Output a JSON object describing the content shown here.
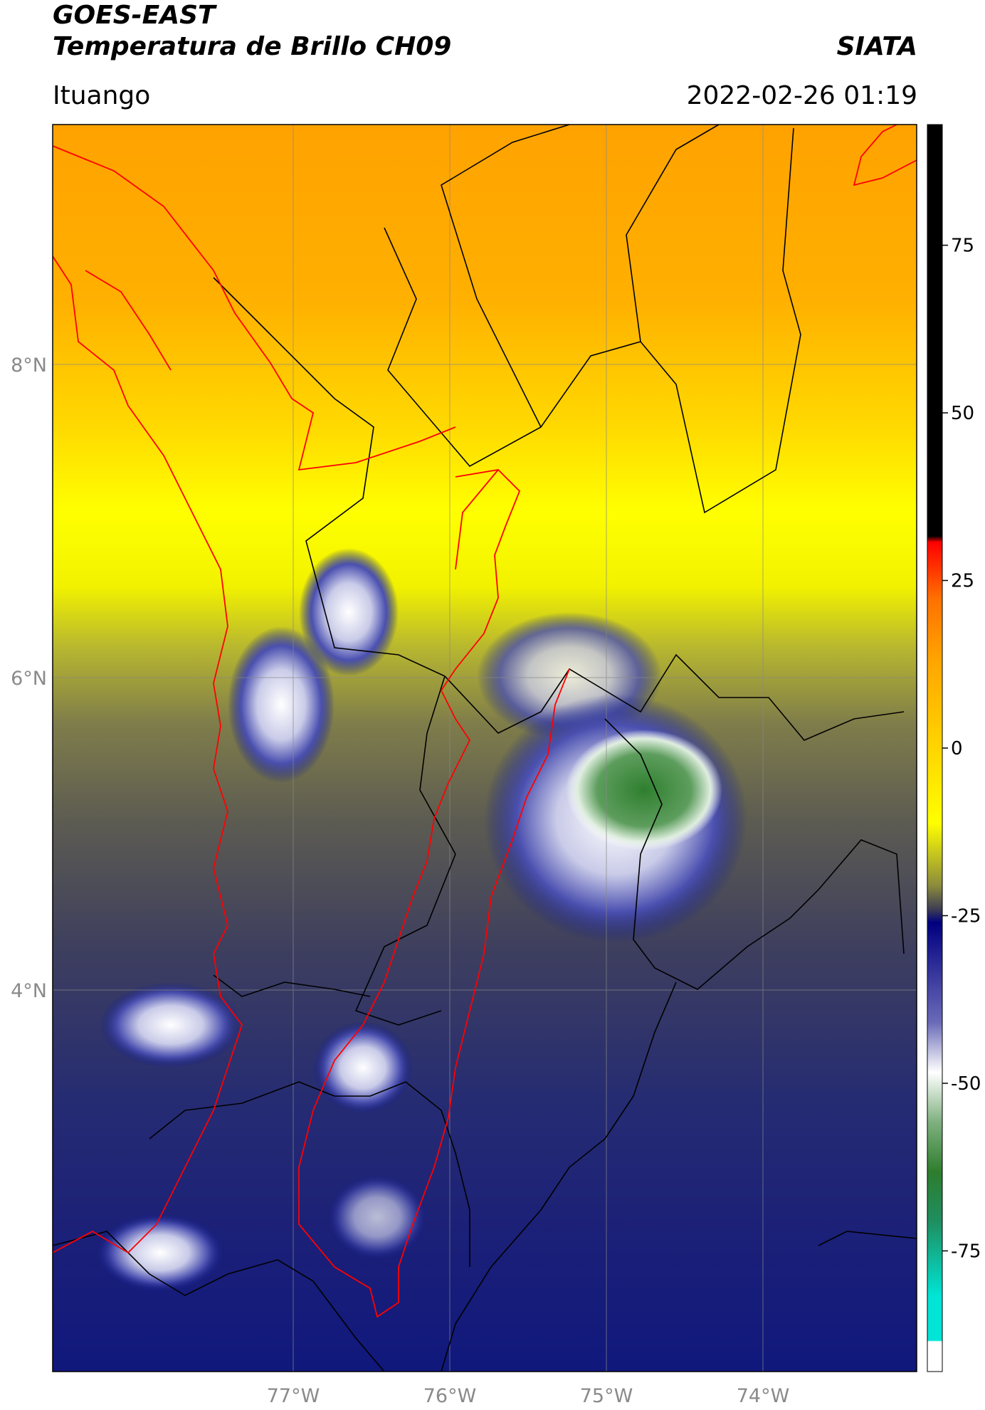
{
  "header": {
    "satellite": "GOES-EAST",
    "product": "Temperatura de Brillo CH09",
    "brand": "SIATA",
    "location": "Ituango",
    "timestamp": "2022-02-26 01:19"
  },
  "map": {
    "lon_labels": [
      "77°W",
      "76°W",
      "75°W",
      "74°W"
    ],
    "lat_labels": [
      "8°N",
      "6°N",
      "4°N"
    ],
    "lon_range": [
      -78.54,
      -72.96
    ],
    "lat_range": [
      1.4,
      9.6
    ],
    "gridlines": true,
    "boundary_colors": {
      "department": "#000000",
      "coast_region": "#ff0000"
    }
  },
  "colorbar": {
    "tick_labels": [
      "75",
      "50",
      "25",
      "0",
      "-25",
      "-50",
      "-75"
    ],
    "tick_values": [
      75,
      50,
      25,
      0,
      -25,
      -50,
      -75
    ],
    "range": [
      -93,
      93
    ],
    "colors": {
      "black": "#000000",
      "red": "#ff0000",
      "orange": "#ffa500",
      "yellow": "#ffff00",
      "olive": "#6f6f3a",
      "navy": "#000080",
      "white": "#ffffff",
      "green": "#2e7d2e",
      "cyan": "#00e5d6"
    }
  }
}
